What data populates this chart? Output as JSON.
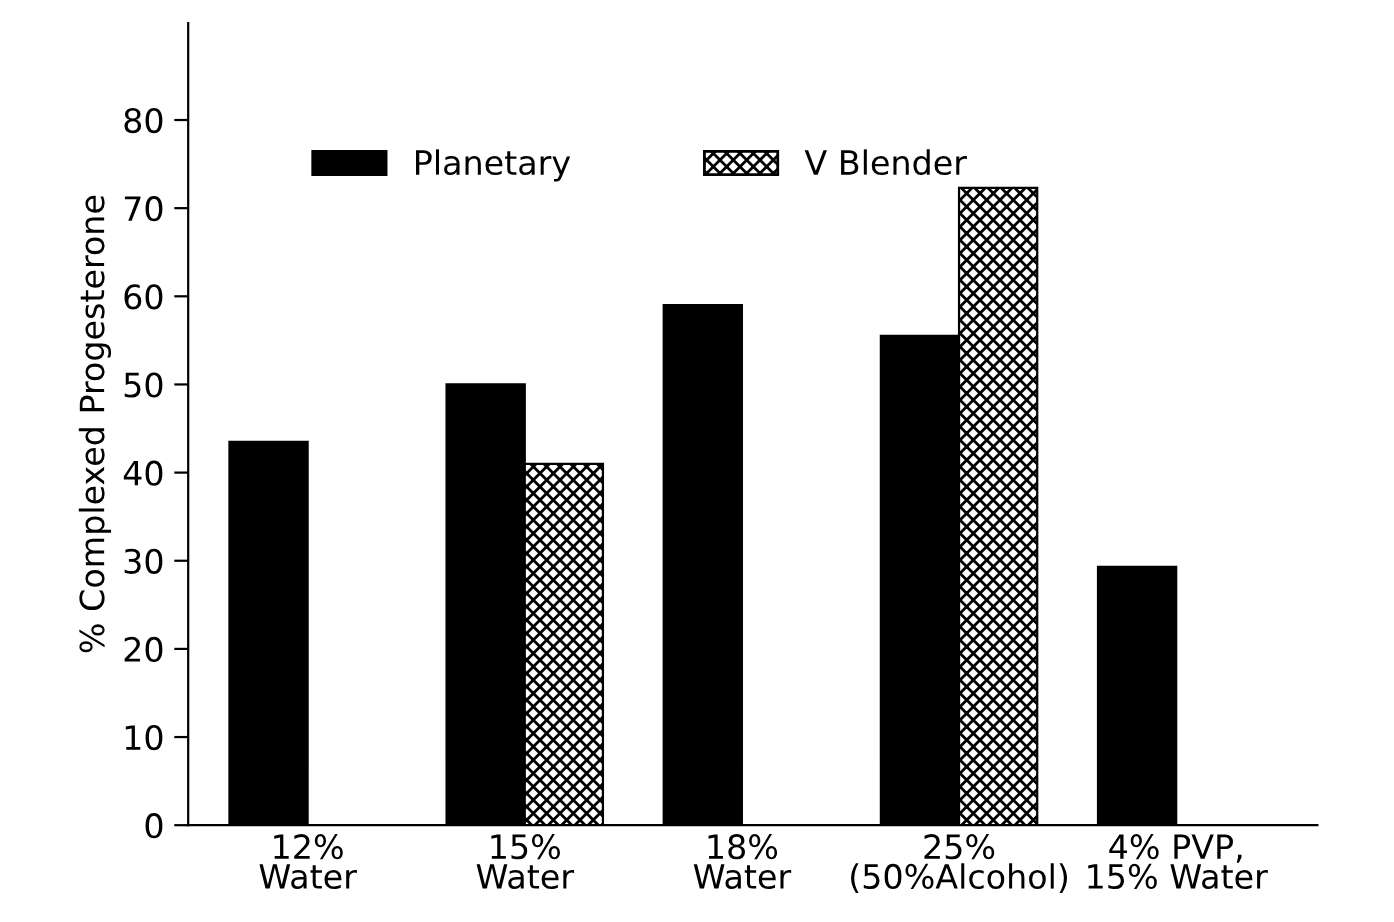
{
  "chart_data": {
    "type": "bar",
    "ylabel": "% Complexed Progesterone",
    "categories": [
      "12%\nWater",
      "15%\nWater",
      "18%\nWater",
      "25%\n(50%Alcohol)",
      "4% PVP,\n15% Water"
    ],
    "series": [
      {
        "name": "Planetary",
        "color": "#000000",
        "values": [
          43.5,
          50,
          59,
          55.5,
          29.3
        ]
      },
      {
        "name": "V Blender",
        "color": "#000000",
        "values": [
          null,
          41,
          null,
          72.3,
          null
        ]
      }
    ],
    "ylim": [
      0,
      91
    ],
    "yticks": [
      0,
      10,
      20,
      30,
      40,
      50,
      60,
      70,
      80
    ],
    "grid": false,
    "legend": "top"
  }
}
